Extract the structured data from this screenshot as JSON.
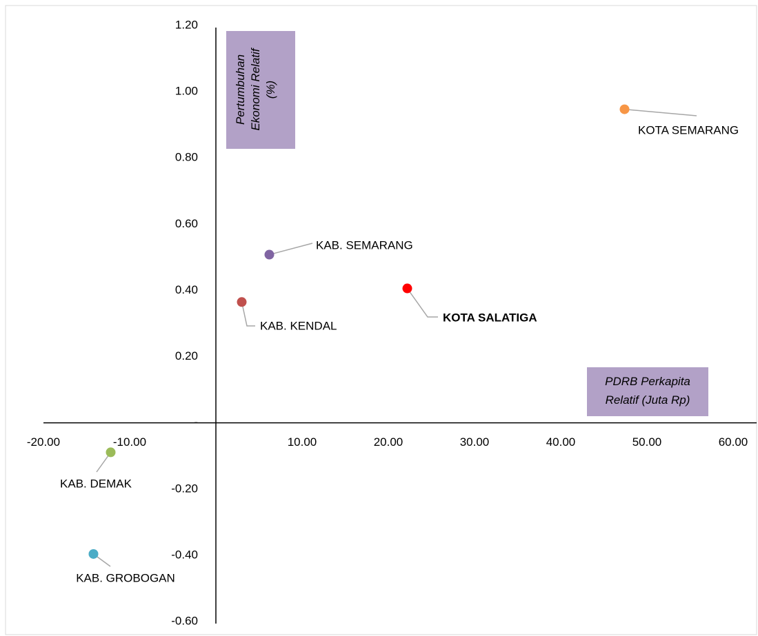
{
  "chart_data": {
    "type": "scatter",
    "ylabel": [
      "Pertumbuhan",
      "Ekonomi Relatif",
      "(%)"
    ],
    "xlabel": [
      "PDRB Perkapita",
      "Relatif (Juta Rp)"
    ],
    "label_box_color": "#b2a1c7",
    "xlim": [
      -20,
      60
    ],
    "xticks": [
      {
        "value": -20,
        "label": "-20.00"
      },
      {
        "value": -10,
        "label": "-10.00"
      },
      {
        "value": 10,
        "label": "10.00"
      },
      {
        "value": 20,
        "label": "20.00"
      },
      {
        "value": 30,
        "label": "30.00"
      },
      {
        "value": 40,
        "label": "40.00"
      },
      {
        "value": 50,
        "label": "50.00"
      },
      {
        "value": 60,
        "label": "60.00"
      }
    ],
    "ylim": [
      -0.6,
      1.2
    ],
    "yticks": [
      {
        "value": 1.2,
        "label": "1.20"
      },
      {
        "value": 1.0,
        "label": "1.00"
      },
      {
        "value": 0.8,
        "label": "0.80"
      },
      {
        "value": 0.6,
        "label": "0.60"
      },
      {
        "value": 0.4,
        "label": "0.40"
      },
      {
        "value": 0.2,
        "label": "0.20"
      },
      {
        "value": 0,
        "label": "-"
      },
      {
        "value": -0.2,
        "label": "-0.20"
      },
      {
        "value": -0.4,
        "label": "-0.40"
      },
      {
        "value": -0.6,
        "label": "-0.60"
      }
    ],
    "series": [
      {
        "name": "KOTA SEMARANG",
        "color": "#f79646",
        "x": [
          47.4
        ],
        "values": [
          0.947
        ]
      },
      {
        "name": "KAB. SEMARANG",
        "color": "#8064a2",
        "x": [
          6.2
        ],
        "values": [
          0.508
        ]
      },
      {
        "name": "KOTA SALATIGA",
        "color": "#ff0000",
        "x": [
          22.2
        ],
        "values": [
          0.406
        ],
        "bold": true
      },
      {
        "name": "KAB. KENDAL",
        "color": "#c0504d",
        "x": [
          3.0
        ],
        "values": [
          0.365
        ]
      },
      {
        "name": "KAB. DEMAK",
        "color": "#9bbb59",
        "x": [
          -12.2
        ],
        "values": [
          -0.089
        ]
      },
      {
        "name": "KAB. GROBOGAN",
        "color": "#4bacc6",
        "x": [
          -14.2
        ],
        "values": [
          -0.396
        ]
      }
    ]
  }
}
